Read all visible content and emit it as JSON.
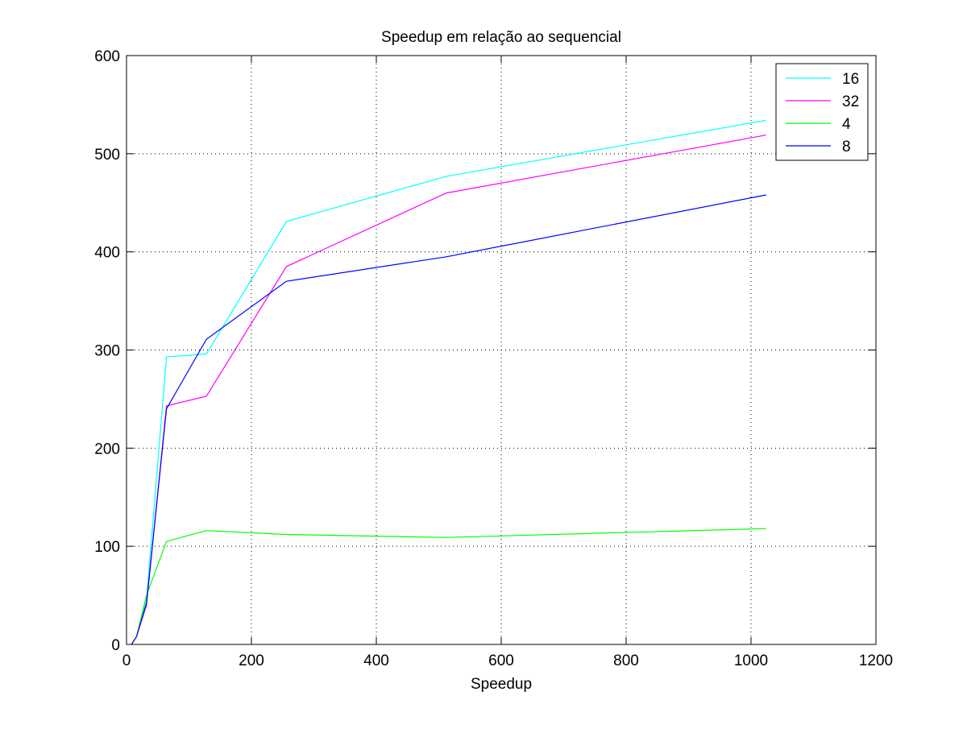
{
  "chart_data": {
    "type": "line",
    "title": "Speedup em relação ao sequencial",
    "xlabel": "Speedup",
    "ylabel": "",
    "xlim": [
      0,
      1200
    ],
    "ylim": [
      0,
      600
    ],
    "xticks": [
      0,
      200,
      400,
      600,
      800,
      1000,
      1200
    ],
    "yticks": [
      0,
      100,
      200,
      300,
      400,
      500,
      600
    ],
    "xtick_labels": [
      "0",
      "200",
      "400",
      "600",
      "800",
      "1000",
      "1200"
    ],
    "ytick_labels": [
      "0",
      "100",
      "200",
      "300",
      "400",
      "500",
      "600"
    ],
    "grid": true,
    "legend_position": "top-right",
    "x": [
      8,
      16,
      32,
      64,
      128,
      256,
      512,
      1024
    ],
    "series": [
      {
        "name": "16",
        "color": "#00ffff",
        "values": [
          0,
          8,
          45,
          293,
          296,
          431,
          477,
          534
        ]
      },
      {
        "name": "32",
        "color": "#ff00ff",
        "values": [
          0,
          8,
          40,
          243,
          253,
          385,
          460,
          519
        ]
      },
      {
        "name": "4",
        "color": "#00ff00",
        "values": [
          0,
          8,
          50,
          105,
          116,
          112,
          109,
          118
        ]
      },
      {
        "name": "8",
        "color": "#0000ff",
        "values": [
          0,
          8,
          42,
          240,
          311,
          370,
          395,
          458
        ]
      }
    ]
  }
}
